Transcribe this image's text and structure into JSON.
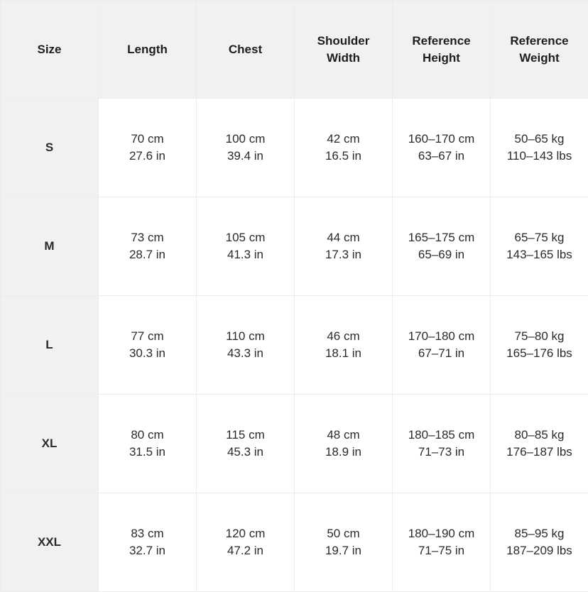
{
  "headers": [
    "Size",
    "Length",
    "Chest",
    "Shoulder\nWidth",
    "Reference\nHeight",
    "Reference\nWeight"
  ],
  "rows": [
    {
      "size": "S",
      "cells": [
        [
          "70 cm",
          "27.6 in"
        ],
        [
          "100 cm",
          "39.4 in"
        ],
        [
          "42 cm",
          "16.5 in"
        ],
        [
          "160–170 cm",
          "63–67 in"
        ],
        [
          "50–65 kg",
          "110–143 lbs"
        ]
      ]
    },
    {
      "size": "M",
      "cells": [
        [
          "73 cm",
          "28.7 in"
        ],
        [
          "105 cm",
          "41.3 in"
        ],
        [
          "44 cm",
          "17.3 in"
        ],
        [
          "165–175 cm",
          "65–69 in"
        ],
        [
          "65–75 kg",
          "143–165 lbs"
        ]
      ]
    },
    {
      "size": "L",
      "cells": [
        [
          "77 cm",
          "30.3 in"
        ],
        [
          "110 cm",
          "43.3 in"
        ],
        [
          "46 cm",
          "18.1 in"
        ],
        [
          "170–180 cm",
          "67–71 in"
        ],
        [
          "75–80 kg",
          "165–176 lbs"
        ]
      ]
    },
    {
      "size": "XL",
      "cells": [
        [
          "80 cm",
          "31.5 in"
        ],
        [
          "115 cm",
          "45.3 in"
        ],
        [
          "48 cm",
          "18.9 in"
        ],
        [
          "180–185 cm",
          "71–73 in"
        ],
        [
          "80–85 kg",
          "176–187 lbs"
        ]
      ]
    },
    {
      "size": "XXL",
      "cells": [
        [
          "83 cm",
          "32.7 in"
        ],
        [
          "120 cm",
          "47.2 in"
        ],
        [
          "50 cm",
          "19.7 in"
        ],
        [
          "180–190 cm",
          "71–75 in"
        ],
        [
          "85–95 kg",
          "187–209 lbs"
        ]
      ]
    }
  ]
}
